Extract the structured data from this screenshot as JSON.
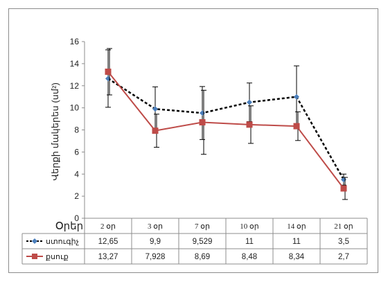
{
  "chart_data": {
    "type": "line",
    "title": "",
    "xlabel": "Օրեր",
    "ylabel": "Վերքի մակերես (սմ²)",
    "ylim": [
      0,
      16
    ],
    "yticks": [
      0,
      2,
      4,
      6,
      8,
      10,
      12,
      14,
      16
    ],
    "grid": false,
    "legend": "data-table",
    "categories": [
      "2 օր",
      "3 օր",
      "7 օր",
      "10 օր",
      "14 օր",
      "21 օր"
    ],
    "series": [
      {
        "name": "ստուգիչ",
        "color": "#4a7ebb",
        "line_color": "#000000",
        "line_style": "dashed",
        "marker": "diamond",
        "values": [
          12.65,
          9.9,
          9.529,
          10.5,
          11,
          3.5
        ],
        "table_labels": [
          "12,65",
          "9,9",
          "9,529",
          "11",
          "11",
          "3,5"
        ],
        "error": [
          2.6,
          2.0,
          2.4,
          1.75,
          2.8,
          0.5
        ]
      },
      {
        "name": "քսուք",
        "color": "#be4b48",
        "line_color": "#be4b48",
        "line_style": "solid",
        "marker": "square",
        "values": [
          13.27,
          7.928,
          8.69,
          8.48,
          8.34,
          2.7
        ],
        "table_labels": [
          "13,27",
          "7,928",
          "8,69",
          "8,48",
          "8,34",
          "2,7"
        ],
        "error": [
          2.1,
          1.5,
          2.9,
          1.7,
          1.3,
          1.0
        ]
      }
    ]
  }
}
